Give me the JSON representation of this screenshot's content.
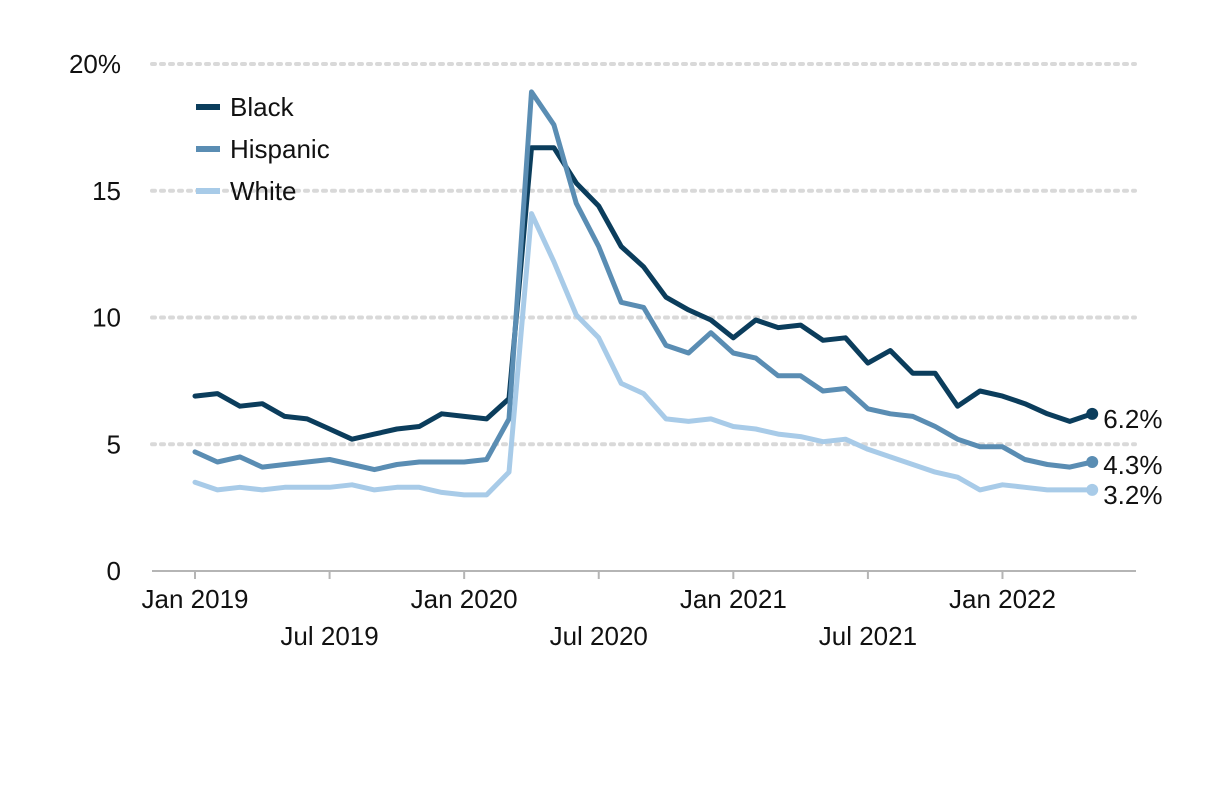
{
  "chart_data": {
    "type": "line",
    "ylim": [
      0,
      20
    ],
    "y_ticks": [
      {
        "value": 0,
        "label": "0"
      },
      {
        "value": 5,
        "label": "5"
      },
      {
        "value": 10,
        "label": "10"
      },
      {
        "value": 15,
        "label": "15"
      },
      {
        "value": 20,
        "label": "20%"
      }
    ],
    "x_ticks": [
      {
        "index": 0,
        "label": "Jan 2019",
        "row": 1
      },
      {
        "index": 6,
        "label": "Jul 2019",
        "row": 2
      },
      {
        "index": 12,
        "label": "Jan 2020",
        "row": 1
      },
      {
        "index": 18,
        "label": "Jul 2020",
        "row": 2
      },
      {
        "index": 24,
        "label": "Jan 2021",
        "row": 1
      },
      {
        "index": 30,
        "label": "Jul 2021",
        "row": 2
      },
      {
        "index": 36,
        "label": "Jan 2022",
        "row": 1
      }
    ],
    "x_start": "Jan 2019",
    "x_end": "May 2022",
    "grid": "horizontal dotted",
    "legend_position": "top-left",
    "series": [
      {
        "name": "Black",
        "color": "#0b3d5c",
        "end_label": "6.2%",
        "values": [
          6.9,
          7.0,
          6.5,
          6.6,
          6.1,
          6.0,
          5.6,
          5.2,
          5.4,
          5.6,
          5.7,
          6.2,
          6.1,
          6.0,
          6.8,
          16.7,
          16.7,
          15.3,
          14.4,
          12.8,
          12.0,
          10.8,
          10.3,
          9.9,
          9.2,
          9.9,
          9.6,
          9.7,
          9.1,
          9.2,
          8.2,
          8.7,
          7.8,
          7.8,
          6.5,
          7.1,
          6.9,
          6.6,
          6.2,
          5.9,
          6.2
        ]
      },
      {
        "name": "Hispanic",
        "color": "#5a8db3",
        "end_label": "4.3%",
        "values": [
          4.7,
          4.3,
          4.5,
          4.1,
          4.2,
          4.3,
          4.4,
          4.2,
          4.0,
          4.2,
          4.3,
          4.3,
          4.3,
          4.4,
          6.0,
          18.9,
          17.6,
          14.5,
          12.8,
          10.6,
          10.4,
          8.9,
          8.6,
          9.4,
          8.6,
          8.4,
          7.7,
          7.7,
          7.1,
          7.2,
          6.4,
          6.2,
          6.1,
          5.7,
          5.2,
          4.9,
          4.9,
          4.4,
          4.2,
          4.1,
          4.3
        ]
      },
      {
        "name": "White",
        "color": "#a8cbe8",
        "end_label": "3.2%",
        "values": [
          3.5,
          3.2,
          3.3,
          3.2,
          3.3,
          3.3,
          3.3,
          3.4,
          3.2,
          3.3,
          3.3,
          3.1,
          3.0,
          3.0,
          3.9,
          14.1,
          12.2,
          10.1,
          9.2,
          7.4,
          7.0,
          6.0,
          5.9,
          6.0,
          5.7,
          5.6,
          5.4,
          5.3,
          5.1,
          5.2,
          4.8,
          4.5,
          4.2,
          3.9,
          3.7,
          3.2,
          3.4,
          3.3,
          3.2,
          3.2,
          3.2
        ]
      }
    ]
  }
}
